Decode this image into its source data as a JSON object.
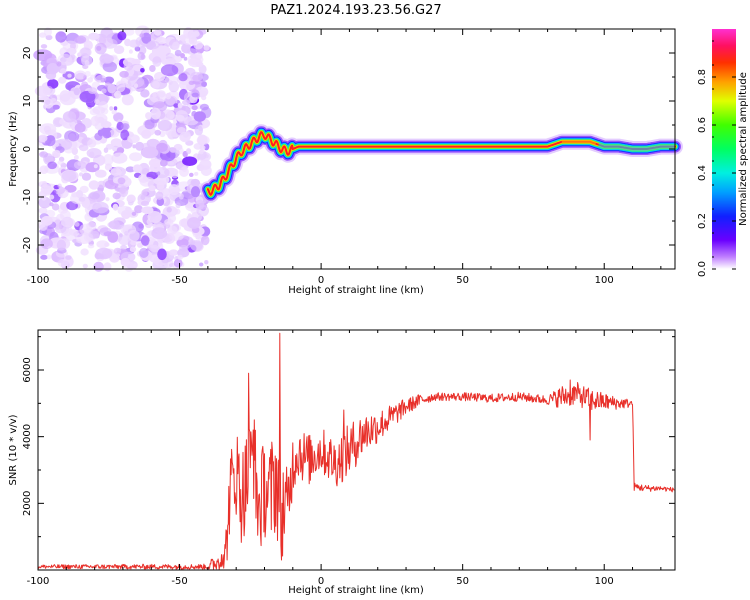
{
  "title": "PAZ1.2024.193.23.56.G27",
  "colors": {
    "snr_line": "#e8302a",
    "noise_purple": "#7a22ff",
    "track_core": "#ff2020",
    "background": "#ffffff"
  },
  "chart_data": [
    {
      "type": "heatmap",
      "name": "spectrogram",
      "xlabel": "Height of straight line (km)",
      "ylabel": "Frequency (Hz)",
      "xlim": [
        -100,
        125
      ],
      "ylim": [
        -25,
        25
      ],
      "x_ticks": [
        -100,
        -50,
        0,
        50,
        100
      ],
      "x_tick_labels": [
        "-100",
        "-50",
        "0",
        "50",
        "100"
      ],
      "y_ticks": [
        -20,
        -10,
        0,
        10,
        20
      ],
      "y_tick_labels": [
        "-20",
        "-10",
        "0",
        "10",
        "20"
      ],
      "colorbar": {
        "label": "Normalized spectral amplitude",
        "range": [
          0,
          1
        ],
        "ticks": [
          0.0,
          0.2,
          0.4,
          0.6,
          0.8
        ],
        "tick_labels": [
          "0.0",
          "0.2",
          "0.4",
          "0.6",
          "0.8"
        ],
        "colormap": "gist_ncar-like (white, purple, blue, cyan, green, yellow, orange, red, magenta)"
      },
      "noise_region": {
        "x_range": [
          -100,
          -39
        ],
        "description_hidden": true
      },
      "track": {
        "x": [
          -40,
          -38,
          -36,
          -34,
          -32,
          -30,
          -28,
          -26,
          -24,
          -22,
          -20,
          -18,
          -16,
          -14,
          -12,
          -10,
          -8,
          -5,
          0,
          20,
          40,
          60,
          80,
          85,
          90,
          95,
          100,
          105,
          110,
          115,
          120,
          125
        ],
        "y": [
          -9,
          -8.5,
          -7.5,
          -6,
          -4,
          -2,
          -0.5,
          0.5,
          1.5,
          2.5,
          3,
          2,
          1,
          0,
          -0.5,
          0,
          0.5,
          0.5,
          0.5,
          0.5,
          0.5,
          0.5,
          0.5,
          1.5,
          1.5,
          1.5,
          0.5,
          0.5,
          0,
          0,
          0.5,
          0.5
        ]
      }
    },
    {
      "type": "line",
      "name": "snr",
      "xlabel": "Height of straight line (km)",
      "ylabel": "SNR (10 * v/v)",
      "xlim": [
        -100,
        125
      ],
      "ylim": [
        0,
        7200
      ],
      "x_ticks": [
        -100,
        -50,
        0,
        50,
        100
      ],
      "x_tick_labels": [
        "-100",
        "-50",
        "0",
        "50",
        "100"
      ],
      "y_ticks": [
        2000,
        4000,
        6000
      ],
      "y_tick_labels": [
        "2000",
        "4000",
        "6000"
      ],
      "envelope": {
        "x": [
          -100,
          -40,
          -34,
          -32,
          -30,
          -28,
          -26,
          -24,
          -22,
          -20,
          -18,
          -16,
          -14,
          -12,
          -10,
          -8,
          -6,
          -4,
          -2,
          0,
          5,
          10,
          15,
          20,
          25,
          30,
          35,
          40,
          45,
          50,
          60,
          70,
          80,
          85,
          90,
          95,
          100,
          105,
          110,
          110.5,
          115,
          120,
          125
        ],
        "y": [
          100,
          100,
          200,
          2500,
          3000,
          2200,
          2800,
          3500,
          1800,
          2500,
          2200,
          2800,
          2000,
          1800,
          3200,
          3600,
          3400,
          3300,
          3500,
          3600,
          3200,
          3600,
          4100,
          4300,
          4600,
          4900,
          5100,
          5200,
          5200,
          5200,
          5150,
          5200,
          5100,
          5200,
          5300,
          5100,
          5050,
          5000,
          5000,
          2500,
          2450,
          2450,
          2400
        ]
      },
      "noise_amplitude": {
        "x": [
          -100,
          -40,
          -34,
          -30,
          -25,
          -20,
          -15,
          -10,
          0,
          10,
          20,
          30,
          40,
          80,
          85,
          95,
          105,
          110,
          125
        ],
        "y": [
          60,
          80,
          800,
          1400,
          1600,
          1500,
          1800,
          900,
          700,
          800,
          500,
          250,
          120,
          140,
          350,
          350,
          180,
          120,
          60
        ]
      },
      "spikes": [
        {
          "x": -25.5,
          "y": 5900
        },
        {
          "x": -14.5,
          "y": 7100
        },
        {
          "x": -14,
          "y": 300
        },
        {
          "x": -24,
          "y": 4200
        },
        {
          "x": 8,
          "y": 4800
        },
        {
          "x": 88,
          "y": 5700
        },
        {
          "x": 95,
          "y": 3900
        }
      ]
    }
  ]
}
